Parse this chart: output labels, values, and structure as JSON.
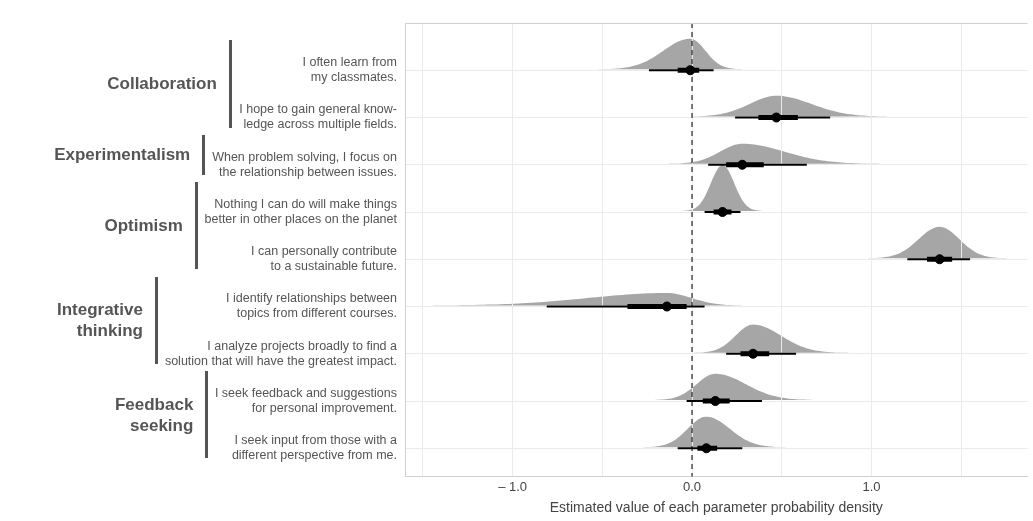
{
  "chart_data": {
    "type": "box",
    "orientation": "horizontal",
    "xlabel": "Estimated value of each parameter probability density",
    "categories": [
      "I often learn from\nmy classmates.",
      "I hope to gain general know-\nledge across multiple fields.",
      "When problem solving, I focus on\nthe relationship between issues.",
      "Nothing I can do will make things\nbetter in other places on the planet",
      "I can personally contribute\nto a sustainable future.",
      "I identify relationships between\ntopics from different courses.",
      "I analyze projects broadly to find a\nsolution that will have the greatest impact.",
      "I seek feedback and suggestions\nfor personal improvement.",
      "I seek input from those with a\ndifferent perspective from me."
    ],
    "color": "#000000",
    "boxes": [
      {
        "low": -0.24,
        "q1": -0.08,
        "median": -0.01,
        "q3": 0.04,
        "high": 0.12
      },
      {
        "low": 0.24,
        "q1": 0.37,
        "median": 0.47,
        "q3": 0.59,
        "high": 0.77
      },
      {
        "low": 0.09,
        "q1": 0.19,
        "median": 0.28,
        "q3": 0.4,
        "high": 0.64
      },
      {
        "low": 0.07,
        "q1": 0.12,
        "median": 0.17,
        "q3": 0.22,
        "high": 0.27
      },
      {
        "low": 1.2,
        "q1": 1.31,
        "median": 1.38,
        "q3": 1.45,
        "high": 1.55
      },
      {
        "low": -0.81,
        "q1": -0.36,
        "median": -0.14,
        "q3": -0.03,
        "high": 0.07
      },
      {
        "low": 0.19,
        "q1": 0.27,
        "median": 0.34,
        "q3": 0.43,
        "high": 0.58
      },
      {
        "low": -0.03,
        "q1": 0.06,
        "median": 0.13,
        "q3": 0.21,
        "high": 0.39
      },
      {
        "low": -0.08,
        "q1": 0.03,
        "median": 0.08,
        "q3": 0.14,
        "high": 0.28
      }
    ],
    "xlim": [
      -1.6,
      1.87
    ],
    "xticks": [
      {
        "value": -1.5,
        "label": null
      },
      {
        "value": -1.0,
        "label": "– 1.0"
      },
      {
        "value": -0.5,
        "label": null
      },
      {
        "value": 0.0,
        "label": "0.0"
      },
      {
        "value": 0.5,
        "label": null
      },
      {
        "value": 1.0,
        "label": "1.0"
      },
      {
        "value": 1.5,
        "label": null
      }
    ],
    "grid": true,
    "ref_lines": [
      {
        "axis": "x",
        "value": 0,
        "line_style": "dashed",
        "color": "#333333"
      }
    ],
    "annotations": [
      "Collaboration",
      "Experimentalism",
      "Optimism",
      "Integrative\nthinking",
      "Feedback\nseeking"
    ]
  }
}
